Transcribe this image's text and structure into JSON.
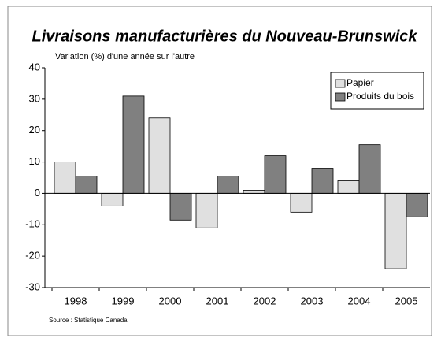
{
  "chart_data": {
    "type": "bar",
    "title": "Livraisons manufacturières du Nouveau-Brunswick",
    "subtitle": "Variation (%) d'une année sur l'autre",
    "source": "Source : Statistique Canada",
    "categories": [
      "1998",
      "1999",
      "2000",
      "2001",
      "2002",
      "2003",
      "2004",
      "2005"
    ],
    "series": [
      {
        "name": "Papier",
        "color": "#e0e0e0",
        "values": [
          10,
          -4,
          24,
          -11,
          1,
          -6,
          4,
          -24
        ]
      },
      {
        "name": "Produits du bois",
        "color": "#808080",
        "values": [
          5.5,
          31,
          -8.5,
          5.5,
          12,
          8,
          15.5,
          -7.5
        ]
      }
    ],
    "ylim": [
      -30,
      40
    ],
    "yticks": [
      -30,
      -20,
      -10,
      0,
      10,
      20,
      30,
      40
    ],
    "legend": "top-right"
  }
}
